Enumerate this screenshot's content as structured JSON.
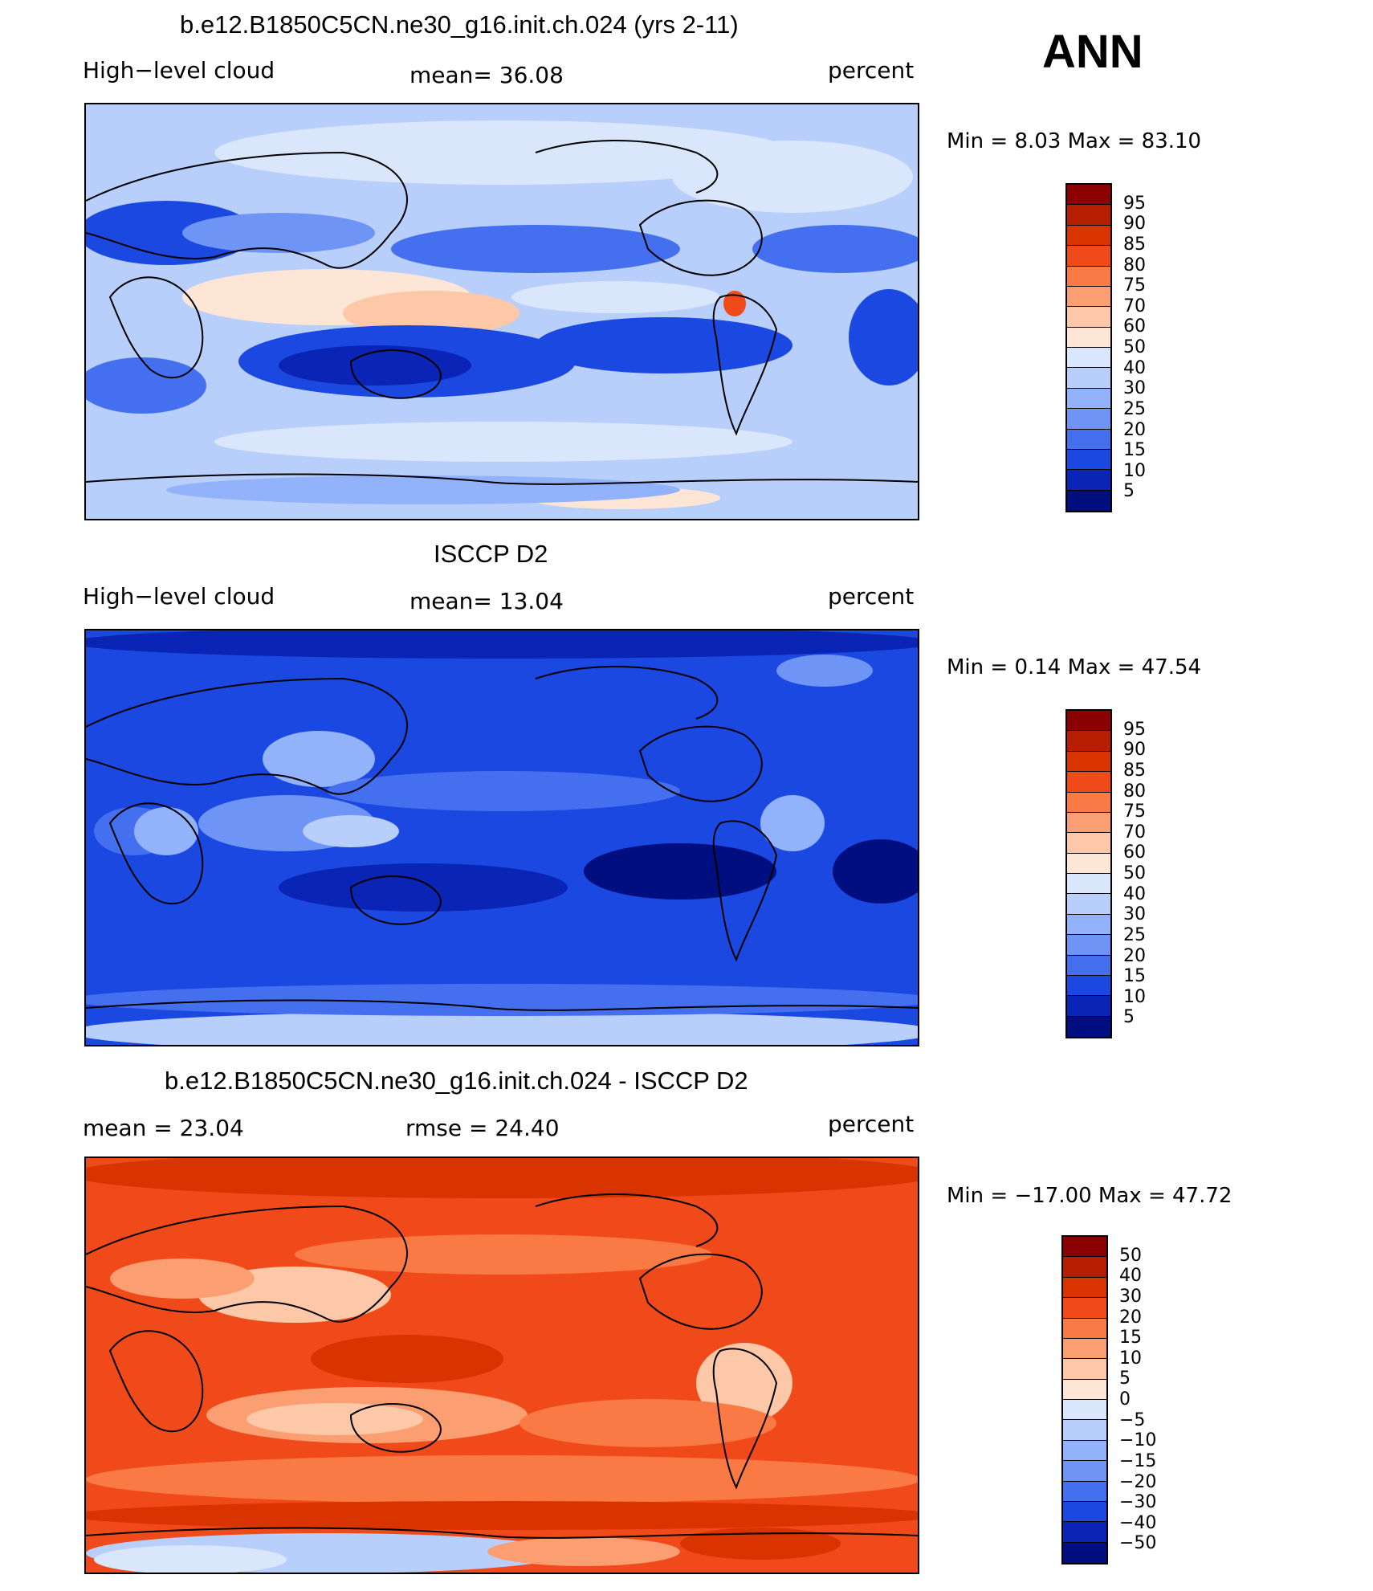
{
  "season": "ANN",
  "panels": [
    {
      "id": "model",
      "title": "b.e12.B1850C5CN.ne30_g16.init.ch.024 (yrs 2-11)",
      "left_label": "High−level cloud",
      "center_label": "mean=   36.08",
      "units": "percent",
      "minmax": "Min =    8.03 Max =   83.10",
      "colorbar_labels": [
        "95",
        "90",
        "85",
        "80",
        "75",
        "70",
        "60",
        "50",
        "40",
        "30",
        "25",
        "20",
        "15",
        "10",
        "5"
      ],
      "colors": [
        "#8b0000",
        "#b51e00",
        "#d93400",
        "#f04a1a",
        "#fa7a45",
        "#fb9e72",
        "#fcc8a8",
        "#fde6d6",
        "#d9e6fb",
        "#b9cffb",
        "#92b3fb",
        "#6e94f5",
        "#4470f0",
        "#1b48e0",
        "#0a24b5",
        "#000e80"
      ],
      "dominant": "#b9cffb"
    },
    {
      "id": "obs",
      "title": "ISCCP D2",
      "left_label": "High−level cloud",
      "center_label": "mean=   13.04",
      "units": "percent",
      "minmax": "Min =    0.14 Max =   47.54",
      "colorbar_labels": [
        "95",
        "90",
        "85",
        "80",
        "75",
        "70",
        "60",
        "50",
        "40",
        "30",
        "25",
        "20",
        "15",
        "10",
        "5"
      ],
      "colors": [
        "#8b0000",
        "#b51e00",
        "#d93400",
        "#f04a1a",
        "#fa7a45",
        "#fb9e72",
        "#fcc8a8",
        "#fde6d6",
        "#d9e6fb",
        "#b9cffb",
        "#92b3fb",
        "#6e94f5",
        "#4470f0",
        "#1b48e0",
        "#0a24b5",
        "#000e80"
      ],
      "dominant": "#1b48e0"
    },
    {
      "id": "diff",
      "title": "b.e12.B1850C5CN.ne30_g16.init.ch.024 - ISCCP D2",
      "left_label": "mean =   23.04",
      "center_label": "rmse =   24.40",
      "units": "percent",
      "minmax": "Min = −17.00 Max =   47.72",
      "colorbar_labels": [
        "50",
        "40",
        "30",
        "20",
        "15",
        "10",
        "5",
        "0",
        "−5",
        "−10",
        "−15",
        "−20",
        "−30",
        "−40",
        "−50"
      ],
      "colors": [
        "#8b0000",
        "#b51e00",
        "#d93400",
        "#f04a1a",
        "#fa7a45",
        "#fb9e72",
        "#fcc8a8",
        "#fde6d6",
        "#d9e6fb",
        "#b9cffb",
        "#92b3fb",
        "#6e94f5",
        "#4470f0",
        "#1b48e0",
        "#0a24b5",
        "#000e80"
      ],
      "dominant": "#f04a1a"
    }
  ]
}
